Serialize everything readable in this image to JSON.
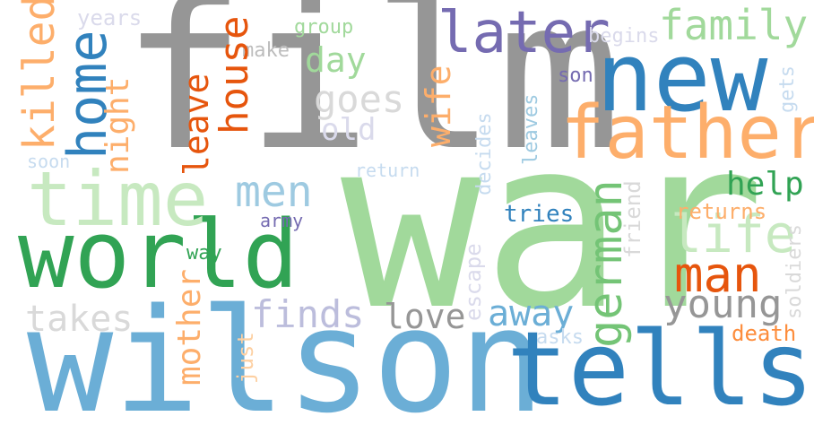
{
  "words": [
    {
      "id": "film",
      "text": "film",
      "color": "#969696"
    },
    {
      "id": "war",
      "text": "war",
      "color": "#a1d99b"
    },
    {
      "id": "wilson",
      "text": "wilson",
      "color": "#6baed6"
    },
    {
      "id": "tells",
      "text": "tells",
      "color": "#3182bd"
    },
    {
      "id": "world",
      "text": "world",
      "color": "#31a354"
    },
    {
      "id": "new",
      "text": "new",
      "color": "#3182bd"
    },
    {
      "id": "father",
      "text": "father",
      "color": "#fdae6b"
    },
    {
      "id": "time",
      "text": "time",
      "color": "#c7e9c0"
    },
    {
      "id": "later",
      "text": "later",
      "color": "#756bb1"
    },
    {
      "id": "family",
      "text": "family",
      "color": "#a1d99b"
    },
    {
      "id": "home",
      "text": "home",
      "color": "#3182bd"
    },
    {
      "id": "killed",
      "text": "killed",
      "color": "#fdae6b"
    },
    {
      "id": "night",
      "text": "night",
      "color": "#fdae6b"
    },
    {
      "id": "house",
      "text": "house",
      "color": "#e6550d"
    },
    {
      "id": "day",
      "text": "day",
      "color": "#a1d99b"
    },
    {
      "id": "leave",
      "text": "leave",
      "color": "#e6550d"
    },
    {
      "id": "goes",
      "text": "goes",
      "color": "#d9d9d9"
    },
    {
      "id": "old",
      "text": "old",
      "color": "#dadaeb"
    },
    {
      "id": "wife",
      "text": "wife",
      "color": "#fdae6b"
    },
    {
      "id": "men",
      "text": "men",
      "color": "#9ecae1"
    },
    {
      "id": "life",
      "text": "life",
      "color": "#c7e9c0"
    },
    {
      "id": "man",
      "text": "man",
      "color": "#e6550d"
    },
    {
      "id": "german",
      "text": "german",
      "color": "#74c476"
    },
    {
      "id": "young",
      "text": "young",
      "color": "#969696"
    },
    {
      "id": "help",
      "text": "help",
      "color": "#31a354"
    },
    {
      "id": "finds",
      "text": "finds",
      "color": "#bcbddc"
    },
    {
      "id": "takes",
      "text": "takes",
      "color": "#d9d9d9"
    },
    {
      "id": "love",
      "text": "love",
      "color": "#969696"
    },
    {
      "id": "away",
      "text": "away",
      "color": "#6baed6"
    },
    {
      "id": "mother",
      "text": "mother",
      "color": "#fdae6b"
    },
    {
      "id": "years",
      "text": "years",
      "color": "#dadaeb"
    },
    {
      "id": "group",
      "text": "group",
      "color": "#a1d99b"
    },
    {
      "id": "make",
      "text": "make",
      "color": "#bdbdbd"
    },
    {
      "id": "begins",
      "text": "begins",
      "color": "#dadaeb"
    },
    {
      "id": "son",
      "text": "son",
      "color": "#756bb1"
    },
    {
      "id": "soon",
      "text": "soon",
      "color": "#c6dbef"
    },
    {
      "id": "return",
      "text": "return",
      "color": "#c6dbef"
    },
    {
      "id": "decides",
      "text": "decides",
      "color": "#c6dbef"
    },
    {
      "id": "leaves",
      "text": "leaves",
      "color": "#9ecae1"
    },
    {
      "id": "gets",
      "text": "gets",
      "color": "#c6dbef"
    },
    {
      "id": "army",
      "text": "army",
      "color": "#756bb1"
    },
    {
      "id": "tries",
      "text": "tries",
      "color": "#3182bd"
    },
    {
      "id": "friend",
      "text": "friend",
      "color": "#d9d9d9"
    },
    {
      "id": "returns",
      "text": "returns",
      "color": "#fdae6b"
    },
    {
      "id": "soldiers",
      "text": "soldiers",
      "color": "#d9d9d9"
    },
    {
      "id": "way",
      "text": "way",
      "color": "#31a354"
    },
    {
      "id": "escape",
      "text": "escape",
      "color": "#dadaeb"
    },
    {
      "id": "just",
      "text": "just",
      "color": "#fdd0a2"
    },
    {
      "id": "asks",
      "text": "asks",
      "color": "#c6dbef"
    },
    {
      "id": "death",
      "text": "death",
      "color": "#fd8d3c"
    }
  ]
}
